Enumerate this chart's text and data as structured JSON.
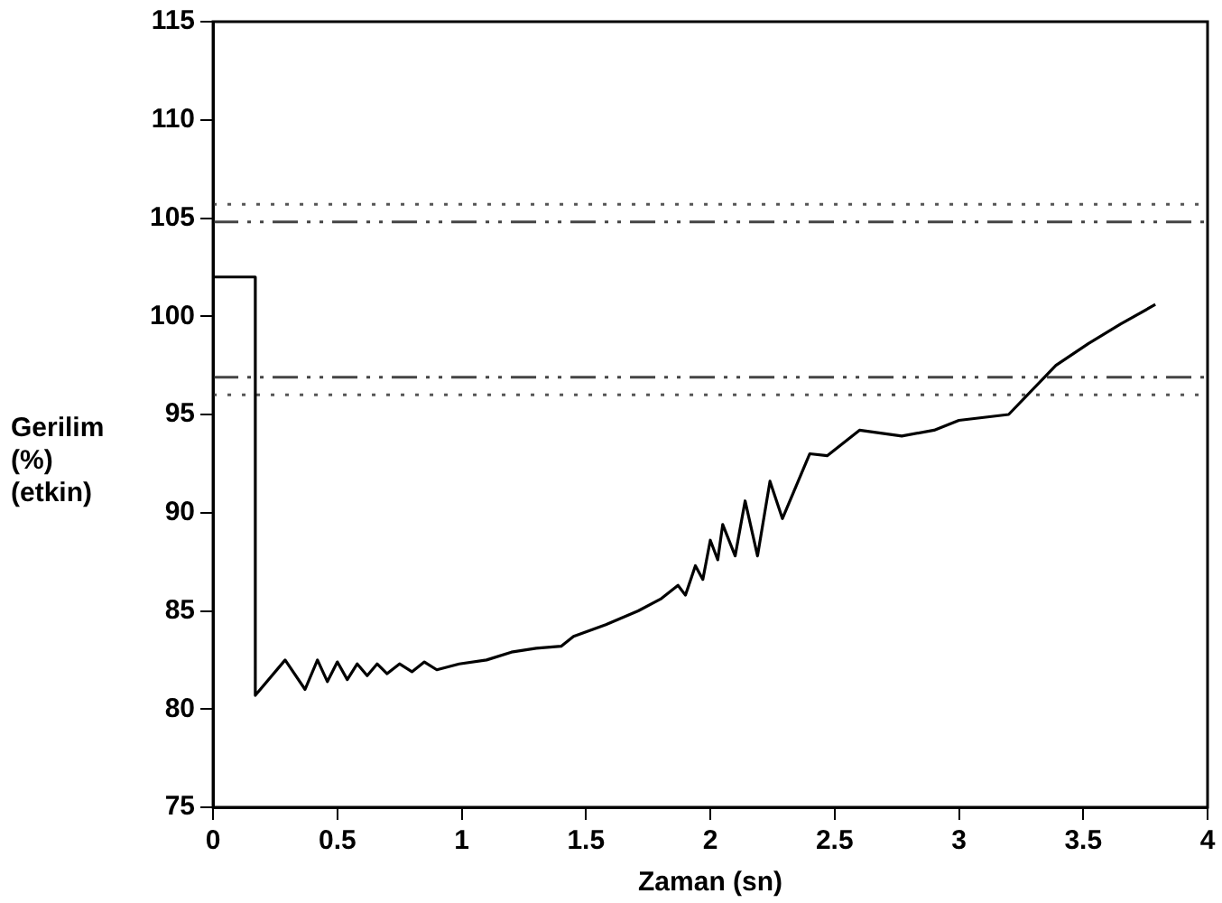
{
  "chart_data": {
    "type": "line",
    "xlabel": "Zaman (sn)",
    "ylabel": "Gerilim\n(%)\n(etkin)",
    "xlim": [
      0,
      4
    ],
    "xticks": [
      0,
      0.5,
      1,
      1.5,
      2,
      2.5,
      3,
      3.5,
      4
    ],
    "ylim": [
      75,
      115
    ],
    "yticks": [
      75,
      80,
      85,
      90,
      95,
      100,
      105,
      110,
      115
    ],
    "grid": false,
    "legend": false,
    "marker": "none",
    "line_style": "solid",
    "series": [
      {
        "color": "#000000",
        "x": [
          0,
          0.17,
          0.17,
          0.29,
          0.37,
          0.42,
          0.46,
          0.5,
          0.54,
          0.58,
          0.62,
          0.66,
          0.7,
          0.75,
          0.8,
          0.85,
          0.9,
          0.99,
          1.1,
          1.2,
          1.3,
          1.4,
          1.45,
          1.58,
          1.71,
          1.8,
          1.87,
          1.9,
          1.94,
          1.97,
          2.0,
          2.03,
          2.05,
          2.1,
          2.14,
          2.19,
          2.24,
          2.29,
          2.4,
          2.47,
          2.6,
          2.77,
          2.9,
          3.0,
          3.2,
          3.39,
          3.52,
          3.65,
          3.79
        ],
        "values": [
          102,
          102,
          80.7,
          82.5,
          81.0,
          82.5,
          81.4,
          82.4,
          81.5,
          82.3,
          81.7,
          82.3,
          81.8,
          82.3,
          81.9,
          82.4,
          82.0,
          82.3,
          82.5,
          82.9,
          83.1,
          83.2,
          83.7,
          84.3,
          85.0,
          85.6,
          86.3,
          85.8,
          87.3,
          86.6,
          88.6,
          87.6,
          89.4,
          87.8,
          90.6,
          87.8,
          91.6,
          89.7,
          93.0,
          92.9,
          94.2,
          93.9,
          94.2,
          94.7,
          95.0,
          97.5,
          98.6,
          99.6,
          100.6
        ]
      }
    ],
    "ref_lines": [
      {
        "axis": "y",
        "value": 105.7,
        "color": "#555555",
        "line_style": "dotted"
      },
      {
        "axis": "y",
        "value": 104.8,
        "color": "#444444",
        "line_style": "dashed"
      },
      {
        "axis": "y",
        "value": 96.9,
        "color": "#444444",
        "line_style": "dashed"
      },
      {
        "axis": "y",
        "value": 96.0,
        "color": "#555555",
        "line_style": "dotted"
      }
    ]
  }
}
